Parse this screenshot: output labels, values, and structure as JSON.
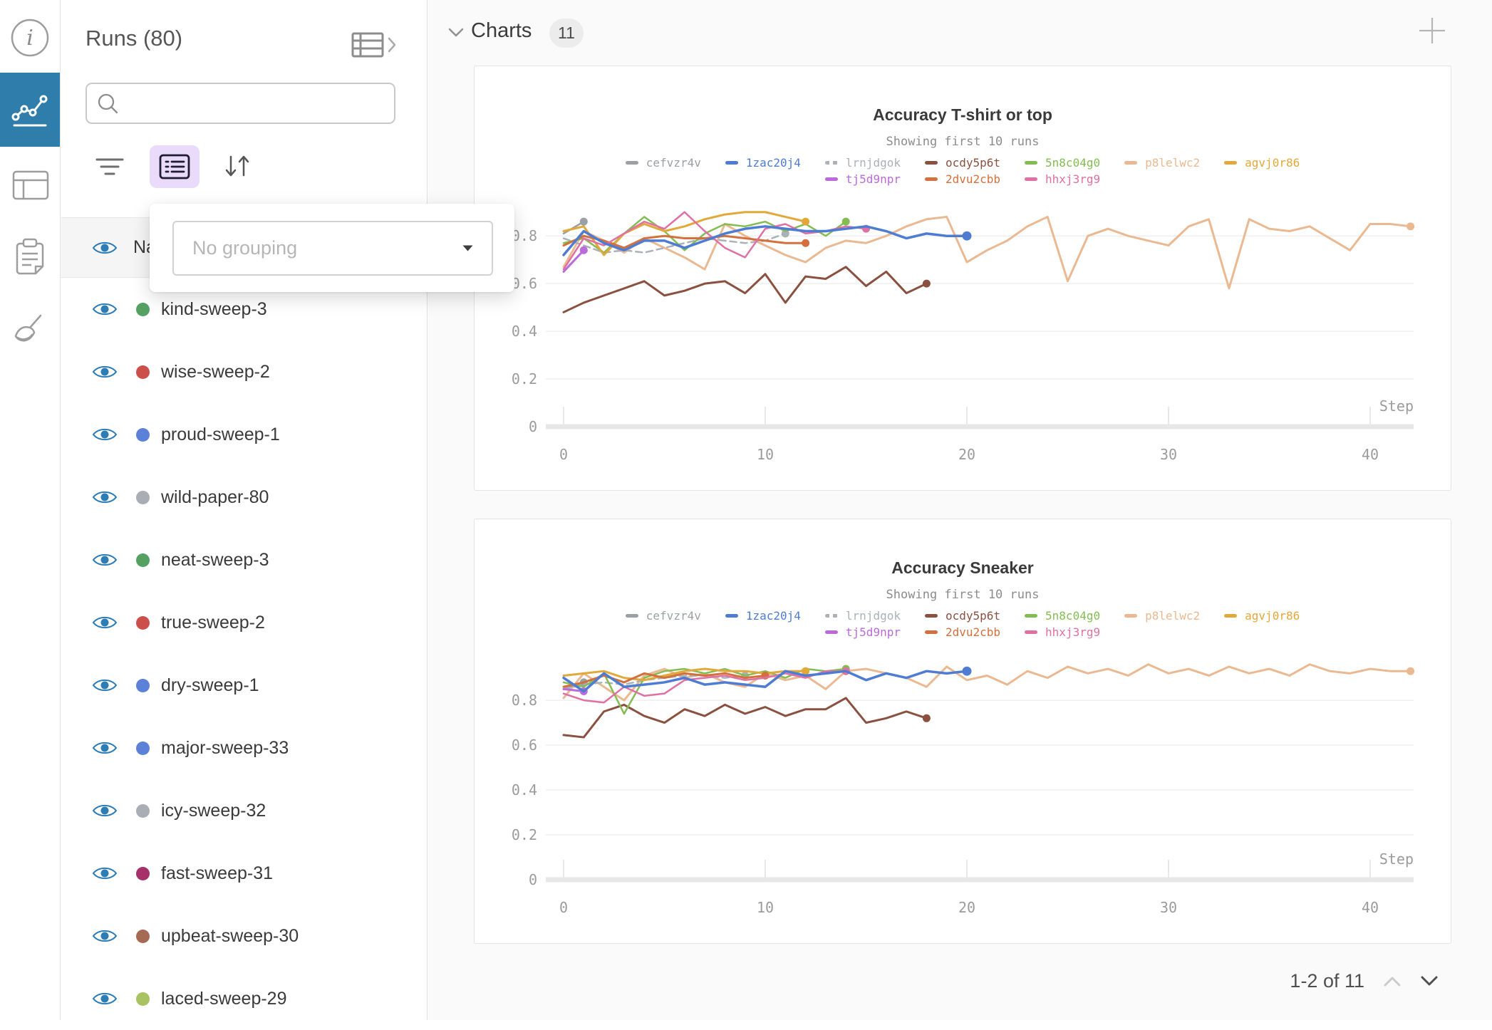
{
  "left_rail": {
    "icons": [
      "info-icon",
      "line-chart-icon",
      "table-icon",
      "clipboard-icon",
      "broom-icon"
    ],
    "selected": "line-chart-icon",
    "selected_color": "#2e7daa"
  },
  "runs_panel": {
    "title": "Runs (80)",
    "search_placeholder": "",
    "search_value": "",
    "header_row_label": "Name",
    "grouping_placeholder": "No grouping",
    "runs": [
      {
        "name": "kind-sweep-3",
        "color": "#54a163"
      },
      {
        "name": "wise-sweep-2",
        "color": "#cd4f4a"
      },
      {
        "name": "proud-sweep-1",
        "color": "#5c81d9"
      },
      {
        "name": "wild-paper-80",
        "color": "#a9aeb4"
      },
      {
        "name": "neat-sweep-3",
        "color": "#54a163"
      },
      {
        "name": "true-sweep-2",
        "color": "#cd4f4a"
      },
      {
        "name": "dry-sweep-1",
        "color": "#5c81d9"
      },
      {
        "name": "major-sweep-33",
        "color": "#5c81d9"
      },
      {
        "name": "icy-sweep-32",
        "color": "#a9aeb4"
      },
      {
        "name": "fast-sweep-31",
        "color": "#a5306a"
      },
      {
        "name": "upbeat-sweep-30",
        "color": "#a56a54"
      },
      {
        "name": "laced-sweep-29",
        "color": "#a9c362"
      }
    ]
  },
  "main": {
    "section_title": "Charts",
    "section_count": "11",
    "pagination": "1-2 of 11"
  },
  "chart_data": [
    {
      "type": "line",
      "title": "Accuracy T-shirt or top",
      "subtitle": "Showing first 10 runs",
      "xlabel": "Step",
      "x_ticks": [
        0,
        10,
        20,
        30,
        40
      ],
      "y_ticks": [
        0,
        0.2,
        0.4,
        0.6,
        0.8
      ],
      "xlim": [
        0,
        42.5
      ],
      "ylim": [
        0,
        0.95
      ],
      "grid": true,
      "legend_position": "top",
      "series": [
        {
          "name": "cefvzr4v",
          "color": "#9aa0a6",
          "dashed": false,
          "width": 2.5,
          "end_dot": true,
          "z": 2,
          "values": [
            0.81,
            0.86
          ]
        },
        {
          "name": "1zac20j4",
          "color": "#4e7cd3",
          "dashed": false,
          "width": 3.5,
          "end_dot": true,
          "z": 3,
          "values": [
            0.72,
            0.82,
            0.77,
            0.74,
            0.78,
            0.78,
            0.75,
            0.78,
            0.81,
            0.83,
            0.84,
            0.83,
            0.82,
            0.82,
            0.83,
            0.84,
            0.82,
            0.79,
            0.81,
            0.8,
            0.8
          ]
        },
        {
          "name": "lrnjdgok",
          "color": "#abb1b9",
          "dashed": true,
          "width": 2.5,
          "end_dot": true,
          "z": 2,
          "values": [
            0.79,
            0.76,
            0.73,
            0.74,
            0.73,
            0.75,
            0.77,
            0.79,
            0.78,
            0.77,
            0.78,
            0.81
          ]
        },
        {
          "name": "ocdy5p6t",
          "color": "#8a5040",
          "dashed": false,
          "width": 3,
          "end_dot": true,
          "z": 2,
          "values": [
            0.48,
            0.52,
            0.55,
            0.58,
            0.61,
            0.55,
            0.57,
            0.6,
            0.61,
            0.56,
            0.64,
            0.52,
            0.63,
            0.62,
            0.67,
            0.59,
            0.65,
            0.56,
            0.6
          ]
        },
        {
          "name": "5n8c04g0",
          "color": "#83bd52",
          "dashed": false,
          "width": 2.5,
          "end_dot": true,
          "z": 2,
          "values": [
            0.77,
            0.79,
            0.73,
            0.81,
            0.88,
            0.82,
            0.74,
            0.81,
            0.85,
            0.84,
            0.86,
            0.82,
            0.85,
            0.8,
            0.86
          ]
        },
        {
          "name": "p8lelwc2",
          "color": "#eab991",
          "dashed": false,
          "width": 3,
          "end_dot": true,
          "z": 1,
          "values": [
            0.67,
            0.82,
            0.78,
            0.73,
            0.79,
            0.75,
            0.71,
            0.66,
            0.85,
            0.8,
            0.76,
            0.72,
            0.69,
            0.75,
            0.78,
            0.77,
            0.8,
            0.84,
            0.87,
            0.88,
            0.69,
            0.74,
            0.78,
            0.84,
            0.88,
            0.61,
            0.8,
            0.83,
            0.8,
            0.78,
            0.76,
            0.84,
            0.87,
            0.58,
            0.87,
            0.83,
            0.82,
            0.84,
            0.79,
            0.74,
            0.85,
            0.85,
            0.84
          ]
        },
        {
          "name": "agvj0r86",
          "color": "#e3a83a",
          "dashed": false,
          "width": 3,
          "end_dot": true,
          "z": 2,
          "values": [
            0.82,
            0.84,
            0.72,
            0.81,
            0.85,
            0.82,
            0.84,
            0.87,
            0.89,
            0.9,
            0.9,
            0.88,
            0.86
          ]
        },
        {
          "name": "tj5d9npr",
          "color": "#bb6ad9",
          "dashed": false,
          "width": 3,
          "end_dot": true,
          "z": 2,
          "values": [
            0.65,
            0.74
          ]
        },
        {
          "name": "2dvu2cbb",
          "color": "#d3703d",
          "dashed": false,
          "width": 3,
          "end_dot": true,
          "z": 2,
          "values": [
            0.76,
            0.8,
            0.78,
            0.75,
            0.79,
            0.8,
            0.79,
            0.79,
            0.8,
            0.79,
            0.78,
            0.77,
            0.77
          ]
        },
        {
          "name": "hhxj3rg9",
          "color": "#e070a3",
          "dashed": false,
          "width": 2.5,
          "end_dot": true,
          "z": 2,
          "values": [
            0.66,
            0.79,
            0.76,
            0.81,
            0.86,
            0.83,
            0.9,
            0.82,
            0.75,
            0.71,
            0.83,
            0.85,
            0.81,
            0.82,
            0.84,
            0.83
          ]
        }
      ]
    },
    {
      "type": "line",
      "title": "Accuracy Sneaker",
      "subtitle": "Showing first 10 runs",
      "xlabel": "Step",
      "x_ticks": [
        0,
        10,
        20,
        30,
        40
      ],
      "y_ticks": [
        0,
        0.2,
        0.4,
        0.6,
        0.8
      ],
      "xlim": [
        0,
        42.5
      ],
      "ylim": [
        0,
        1.01
      ],
      "grid": true,
      "legend_position": "top",
      "series": [
        {
          "name": "cefvzr4v",
          "color": "#9aa0a6",
          "dashed": false,
          "width": 2.5,
          "end_dot": true,
          "z": 2,
          "values": [
            0.85,
            0.88
          ]
        },
        {
          "name": "1zac20j4",
          "color": "#4e7cd3",
          "dashed": false,
          "width": 3.5,
          "end_dot": true,
          "z": 3,
          "values": [
            0.9,
            0.84,
            0.92,
            0.86,
            0.87,
            0.88,
            0.9,
            0.87,
            0.88,
            0.87,
            0.86,
            0.93,
            0.91,
            0.92,
            0.93,
            0.89,
            0.92,
            0.9,
            0.93,
            0.92,
            0.93
          ]
        },
        {
          "name": "lrnjdgok",
          "color": "#abb1b9",
          "dashed": true,
          "width": 2.5,
          "end_dot": true,
          "z": 2,
          "values": [
            0.85,
            0.87,
            0.88,
            0.87,
            0.89,
            0.9,
            0.91,
            0.91,
            0.9,
            0.91
          ]
        },
        {
          "name": "ocdy5p6t",
          "color": "#8a5040",
          "dashed": false,
          "width": 3,
          "end_dot": true,
          "z": 2,
          "values": [
            0.645,
            0.635,
            0.75,
            0.78,
            0.73,
            0.7,
            0.76,
            0.73,
            0.78,
            0.74,
            0.77,
            0.73,
            0.76,
            0.76,
            0.81,
            0.7,
            0.72,
            0.75,
            0.72
          ]
        },
        {
          "name": "5n8c04g0",
          "color": "#83bd52",
          "dashed": false,
          "width": 2.5,
          "end_dot": true,
          "z": 2,
          "values": [
            0.88,
            0.86,
            0.92,
            0.74,
            0.9,
            0.93,
            0.94,
            0.92,
            0.94,
            0.91,
            0.93,
            0.9,
            0.94,
            0.93,
            0.94
          ]
        },
        {
          "name": "p8lelwc2",
          "color": "#eab991",
          "dashed": false,
          "width": 3,
          "end_dot": true,
          "z": 1,
          "values": [
            0.81,
            0.92,
            0.86,
            0.8,
            0.91,
            0.94,
            0.9,
            0.92,
            0.88,
            0.86,
            0.92,
            0.89,
            0.91,
            0.85,
            0.93,
            0.94,
            0.92,
            0.9,
            0.86,
            0.95,
            0.89,
            0.91,
            0.87,
            0.93,
            0.9,
            0.95,
            0.92,
            0.94,
            0.91,
            0.96,
            0.92,
            0.94,
            0.91,
            0.95,
            0.92,
            0.94,
            0.91,
            0.96,
            0.93,
            0.92,
            0.94,
            0.93,
            0.93
          ]
        },
        {
          "name": "agvj0r86",
          "color": "#e3a83a",
          "dashed": false,
          "width": 3,
          "end_dot": true,
          "z": 2,
          "values": [
            0.91,
            0.92,
            0.93,
            0.9,
            0.89,
            0.91,
            0.93,
            0.94,
            0.93,
            0.93,
            0.92,
            0.93,
            0.93
          ]
        },
        {
          "name": "tj5d9npr",
          "color": "#bb6ad9",
          "dashed": false,
          "width": 3,
          "end_dot": true,
          "z": 2,
          "values": [
            0.85,
            0.84
          ]
        },
        {
          "name": "2dvu2cbb",
          "color": "#d3703d",
          "dashed": false,
          "width": 3,
          "end_dot": true,
          "z": 2,
          "values": [
            0.86,
            0.88,
            0.91,
            0.88,
            0.92,
            0.9,
            0.92,
            0.91,
            0.92,
            0.9,
            0.91
          ]
        },
        {
          "name": "hhxj3rg9",
          "color": "#e070a3",
          "dashed": false,
          "width": 2.5,
          "end_dot": true,
          "z": 2,
          "values": [
            0.83,
            0.8,
            0.79,
            0.86,
            0.82,
            0.83,
            0.89,
            0.9,
            0.91,
            0.89,
            0.9,
            0.92,
            0.9,
            0.93,
            0.93
          ]
        }
      ]
    }
  ]
}
